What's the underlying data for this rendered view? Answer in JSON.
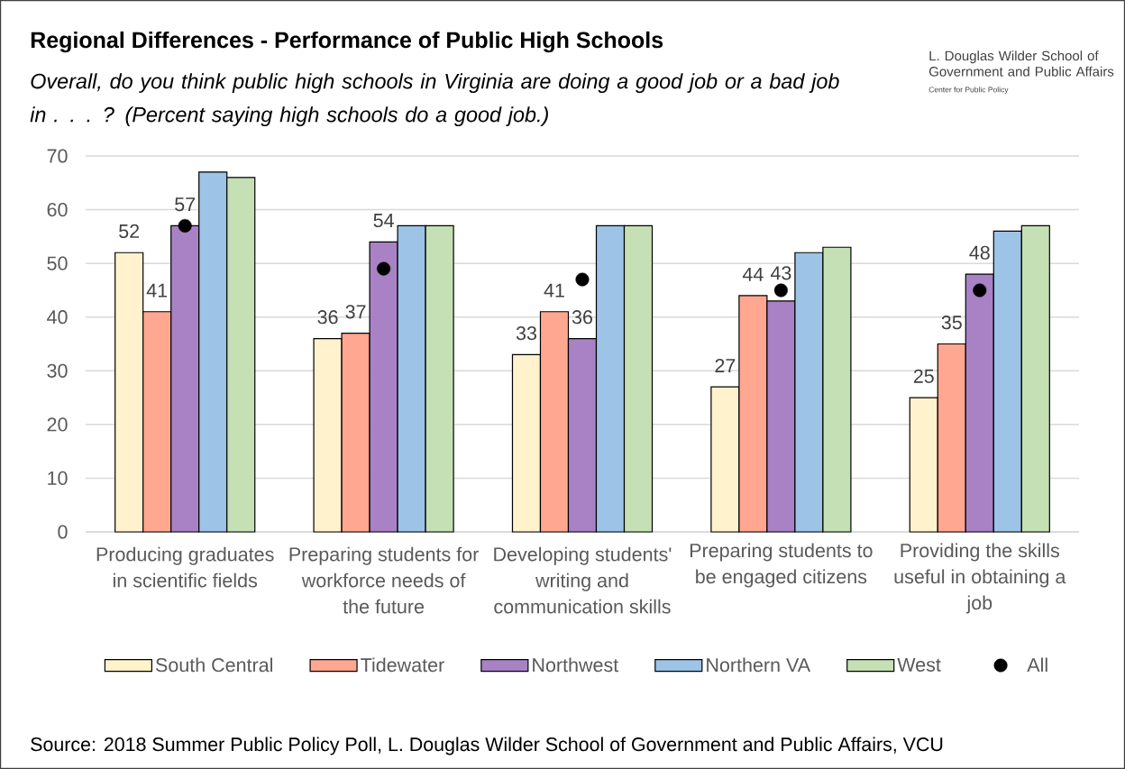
{
  "chart_data": {
    "type": "bar",
    "title": "Regional Differences - Performance of Public High Schools",
    "subtitle": "Overall, do you think public high schools in Virginia are doing a good job or a bad job in . . . ? (Percent saying high schools do a good job.)",
    "categories": [
      "Producing graduates in scientific fields",
      "Preparing students for workforce needs of the future",
      "Developing students' writing and communication skills",
      "Preparing students to be engaged citizens",
      "Providing the skills useful in obtaining a job"
    ],
    "series": [
      {
        "name": "South Central",
        "color": "#fff2cc",
        "values": [
          52,
          36,
          33,
          27,
          25
        ],
        "value_labels": [
          "52",
          "36",
          "33",
          "27",
          "25"
        ]
      },
      {
        "name": "Tidewater",
        "color": "#ffa791",
        "values": [
          41,
          37,
          41,
          44,
          35
        ],
        "value_labels": [
          "41",
          "37",
          "41",
          "44",
          "35"
        ]
      },
      {
        "name": "Northwest",
        "color": "#a882c4",
        "values": [
          57,
          54,
          36,
          43,
          48
        ],
        "value_labels": [
          "57",
          "54",
          "36",
          "43",
          "48"
        ]
      },
      {
        "name": "Northern VA",
        "color": "#9dc3e6",
        "values": [
          67,
          57,
          57,
          52,
          56
        ]
      },
      {
        "name": "West",
        "color": "#c5e0b4",
        "values": [
          66,
          57,
          57,
          53,
          57
        ]
      },
      {
        "name": "All",
        "type": "scatter",
        "color": "#000000",
        "marker": "circle",
        "values": [
          57,
          49,
          47,
          45,
          45
        ]
      }
    ],
    "ylim": [
      0,
      70
    ],
    "yticks": [
      0,
      10,
      20,
      30,
      40,
      50,
      60,
      70
    ],
    "grid": "y",
    "legend": "bottom",
    "annotations": [
      "Source: 2018 Summer Public Policy Poll, L. Douglas Wilder School of Government and Public Affairs, VCU",
      "L. Douglas Wilder School of Government and Public Affairs",
      "Center for Public Policy"
    ]
  }
}
